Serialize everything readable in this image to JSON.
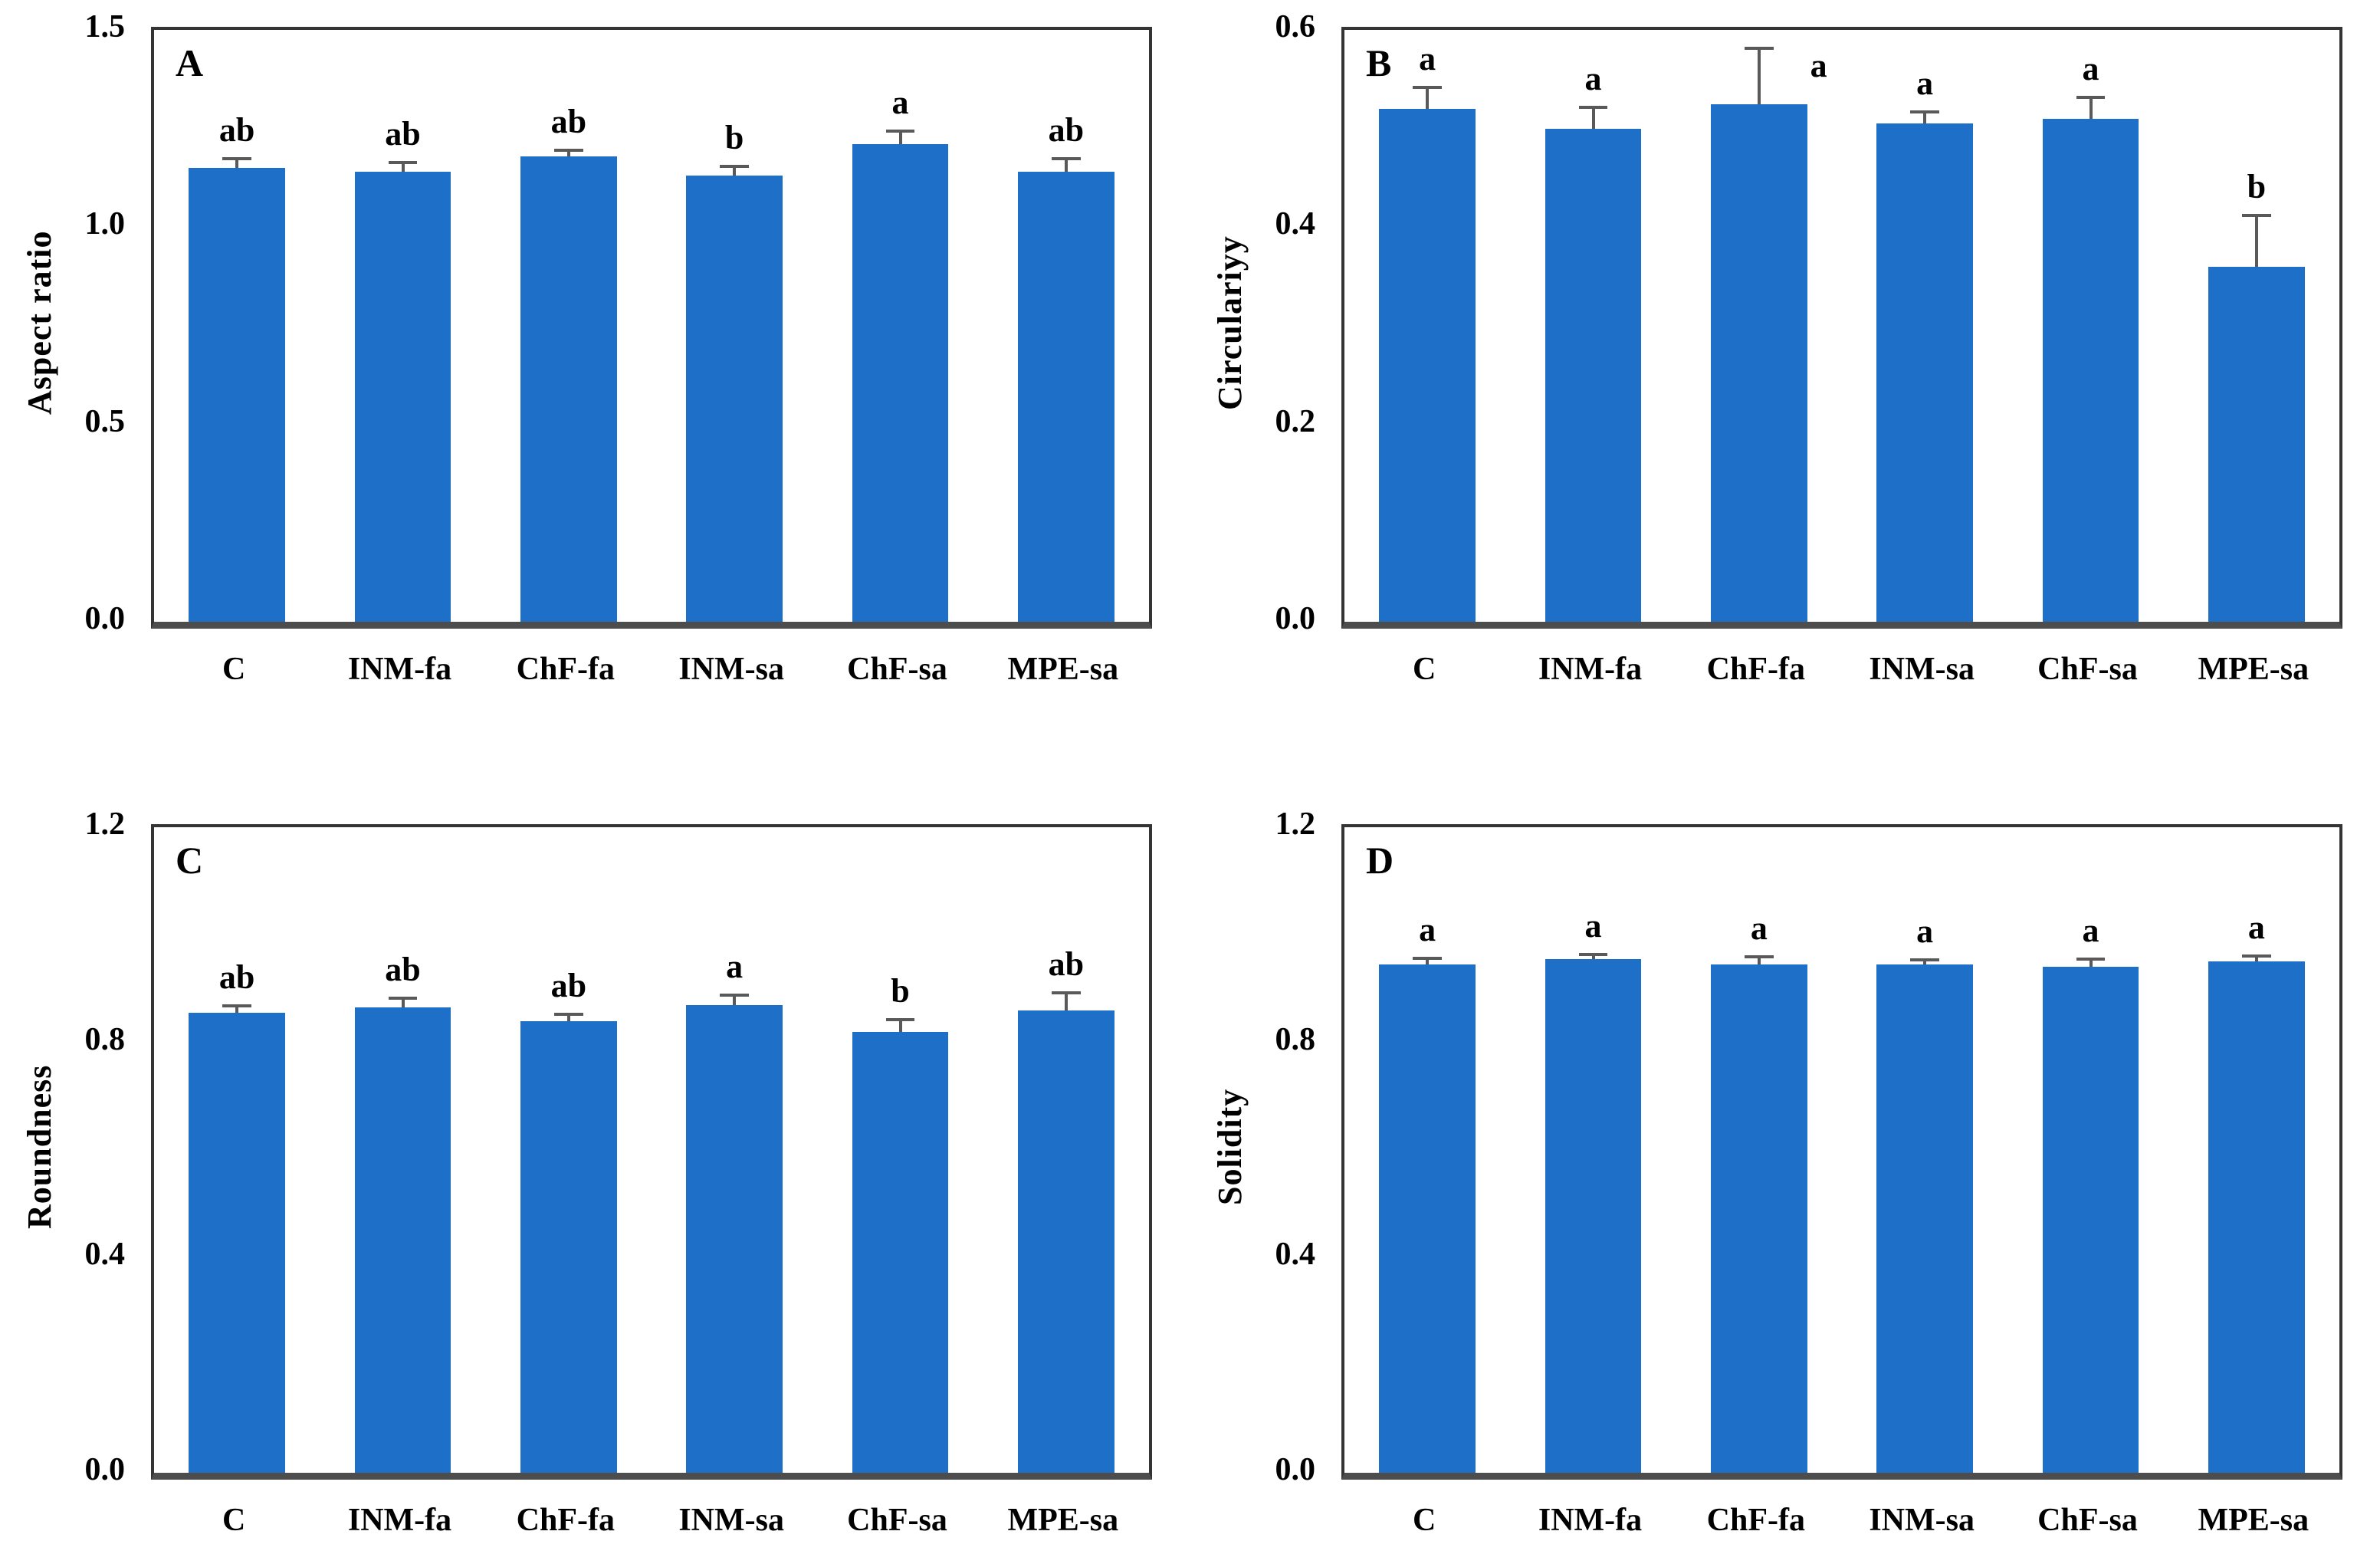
{
  "style": {
    "bar_color": "#1d6fc8",
    "error_color": "#595959",
    "frame_color": "#343434",
    "baseline_color": "#4d4d4d",
    "text_color": "#000000",
    "background": "#ffffff"
  },
  "categories": [
    "C",
    "INM-fa",
    "ChF-fa",
    "INM-sa",
    "ChF-sa",
    "MPE-sa"
  ],
  "chart_data": [
    {
      "type": "bar",
      "panel_label": "A",
      "ylabel": "Aspect ratio",
      "xlabel": "",
      "ylim": [
        0,
        1.5
      ],
      "yticks": [
        "1.5",
        "1.0",
        "0.5",
        "0.0"
      ],
      "grid": false,
      "legend": "none",
      "categories": [
        "C",
        "INM-fa",
        "ChF-fa",
        "INM-sa",
        "ChF-sa",
        "MPE-sa"
      ],
      "values": [
        1.15,
        1.14,
        1.18,
        1.13,
        1.21,
        1.14
      ],
      "errors": [
        0.02,
        0.02,
        0.012,
        0.02,
        0.03,
        0.03
      ],
      "sig_letters": [
        "ab",
        "ab",
        "ab",
        "b",
        "a",
        "ab"
      ]
    },
    {
      "type": "bar",
      "panel_label": "B",
      "ylabel": "Circulariyy",
      "xlabel": "",
      "ylim": [
        0,
        0.6
      ],
      "yticks": [
        "0.6",
        "0.4",
        "0.2",
        "0.0"
      ],
      "grid": false,
      "legend": "none",
      "categories": [
        "C",
        "INM-fa",
        "ChF-fa",
        "INM-sa",
        "ChF-sa",
        "MPE-sa"
      ],
      "values": [
        0.52,
        0.5,
        0.525,
        0.505,
        0.51,
        0.36
      ],
      "errors": [
        0.02,
        0.02,
        0.055,
        0.01,
        0.02,
        0.05
      ],
      "sig_letters": [
        "a",
        "a",
        "a",
        "a",
        "a",
        "b"
      ]
    },
    {
      "type": "bar",
      "panel_label": "C",
      "ylabel": "Roundness",
      "xlabel": "",
      "ylim": [
        0,
        1.2
      ],
      "yticks": [
        "1.2",
        "0.8",
        "0.4",
        "0.0"
      ],
      "grid": false,
      "legend": "none",
      "categories": [
        "C",
        "INM-fa",
        "ChF-fa",
        "INM-sa",
        "ChF-sa",
        "MPE-sa"
      ],
      "values": [
        0.855,
        0.865,
        0.84,
        0.87,
        0.82,
        0.86
      ],
      "errors": [
        0.01,
        0.015,
        0.01,
        0.015,
        0.02,
        0.03
      ],
      "sig_letters": [
        "ab",
        "ab",
        "ab",
        "a",
        "b",
        "ab"
      ]
    },
    {
      "type": "bar",
      "panel_label": "D",
      "ylabel": "Solidity",
      "xlabel": "",
      "ylim": [
        0,
        1.2
      ],
      "yticks": [
        "1.2",
        "0.8",
        "0.4",
        "0.0"
      ],
      "grid": false,
      "legend": "none",
      "categories": [
        "C",
        "INM-fa",
        "ChF-fa",
        "INM-sa",
        "ChF-sa",
        "MPE-sa"
      ],
      "values": [
        0.945,
        0.955,
        0.945,
        0.945,
        0.94,
        0.95
      ],
      "errors": [
        0.008,
        0.005,
        0.012,
        0.005,
        0.012,
        0.008
      ],
      "sig_letters": [
        "a",
        "a",
        "a",
        "a",
        "a",
        "a"
      ]
    }
  ]
}
